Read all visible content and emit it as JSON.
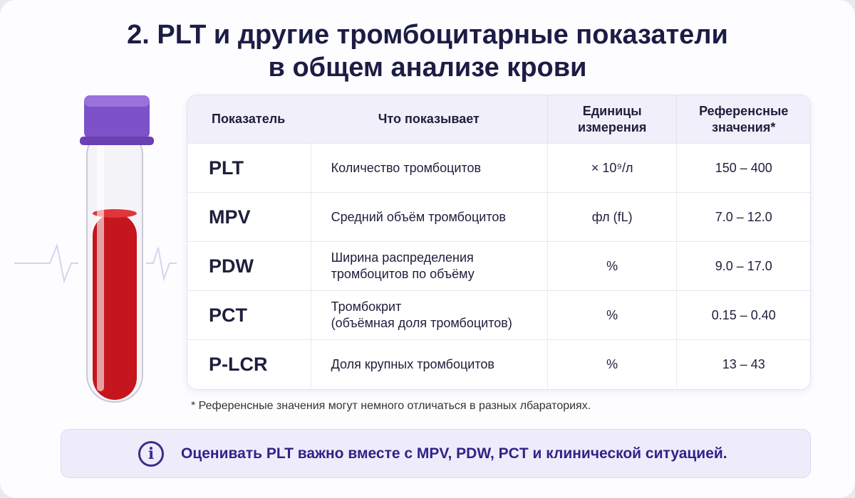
{
  "header": {
    "title": [
      "2. PLT и другие тромбоцитарные показатели",
      "в общем анализе крови"
    ]
  },
  "table": {
    "columns": [
      [
        "Показатель"
      ],
      [
        "Что показывает"
      ],
      [
        "Единицы",
        "измерения"
      ],
      [
        "Референсные",
        "значения*"
      ]
    ],
    "rows": [
      [
        [
          "PLT"
        ],
        [
          "Количество тромбоцитов"
        ],
        [
          "× 10⁹/л"
        ],
        [
          "150 – 400"
        ]
      ],
      [
        [
          "MPV"
        ],
        [
          "Средний объём тромбоцитов"
        ],
        [
          "фл (fL)"
        ],
        [
          "7.0 – 12.0"
        ]
      ],
      [
        [
          "PDW"
        ],
        [
          "Ширина распределения",
          "тромбоцитов по объёму"
        ],
        [
          "%"
        ],
        [
          "9.0 – 17.0"
        ]
      ],
      [
        [
          "PCT"
        ],
        [
          "Тромбокрит",
          "(объёмная доля тромбоцитов)"
        ],
        [
          "%"
        ],
        [
          "0.15 – 0.40"
        ]
      ],
      [
        [
          "P-LCR"
        ],
        [
          "Доля крупных тромбоцитов"
        ],
        [
          "%"
        ],
        [
          "13 – 43"
        ]
      ]
    ]
  },
  "footnote": "* Референсные значения могут немного отличаться в разных лбараториях.",
  "note": {
    "icon": "i",
    "text": "Оценивать PLT важно вместе с MPV, PDW, PCT и клинической ситуацией."
  }
}
